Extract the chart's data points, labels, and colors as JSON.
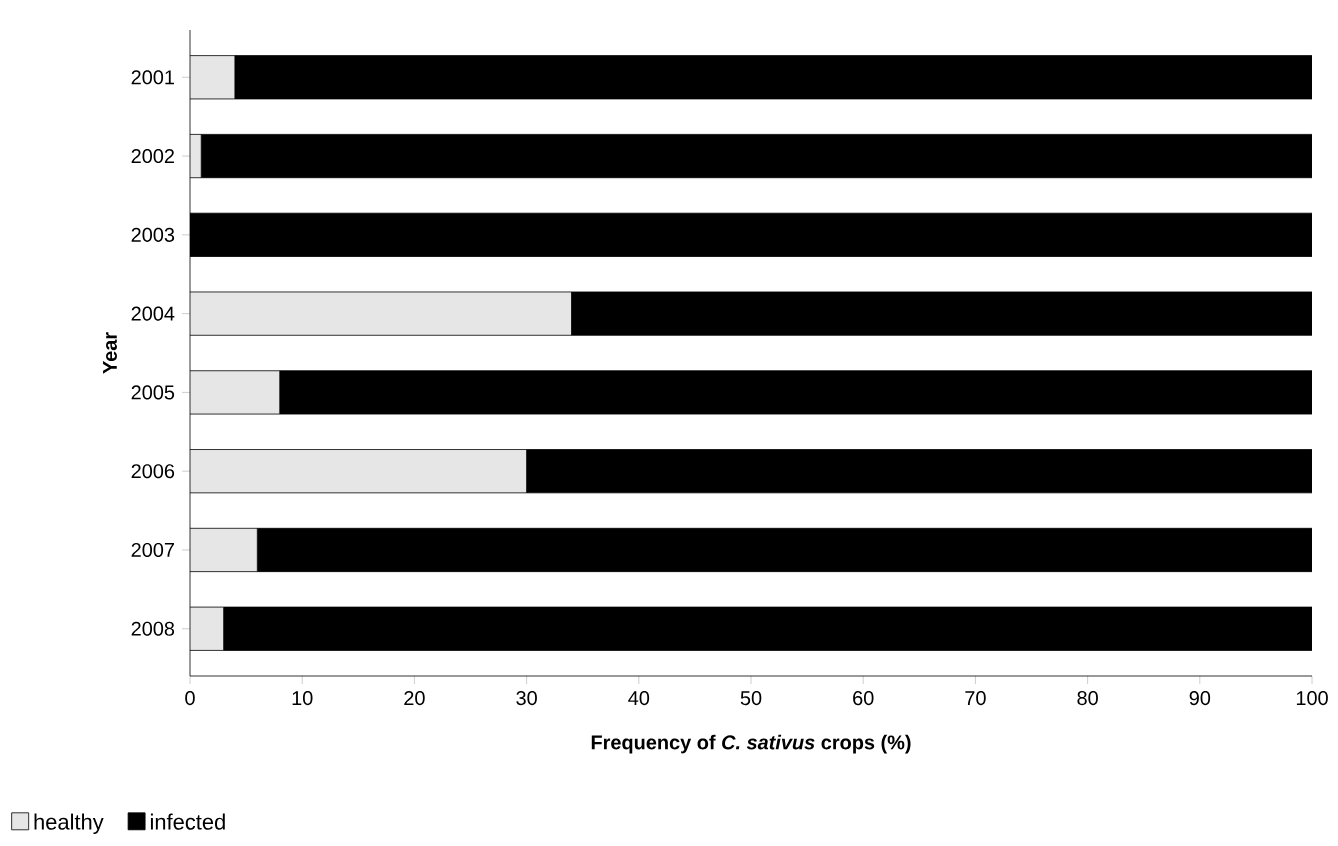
{
  "chart_data": {
    "type": "bar",
    "orientation": "horizontal",
    "stacked": true,
    "xlabel": "Frequency of *C. sativus* crops (%)",
    "ylabel": "Year",
    "categories": [
      "2001",
      "2002",
      "2003",
      "2004",
      "2005",
      "2006",
      "2007",
      "2008"
    ],
    "series": [
      {
        "name": "healthy",
        "color": "#e6e6e6",
        "values": [
          4,
          1,
          0,
          34,
          8,
          30,
          6,
          3
        ]
      },
      {
        "name": "infected",
        "color": "#000000",
        "values": [
          96,
          99,
          100,
          66,
          92,
          70,
          94,
          97
        ]
      }
    ],
    "xlim": [
      0,
      100
    ],
    "xticks": [
      0,
      10,
      20,
      30,
      40,
      50,
      60,
      70,
      80,
      90,
      100
    ],
    "grid": false,
    "legend": "bottom left"
  }
}
